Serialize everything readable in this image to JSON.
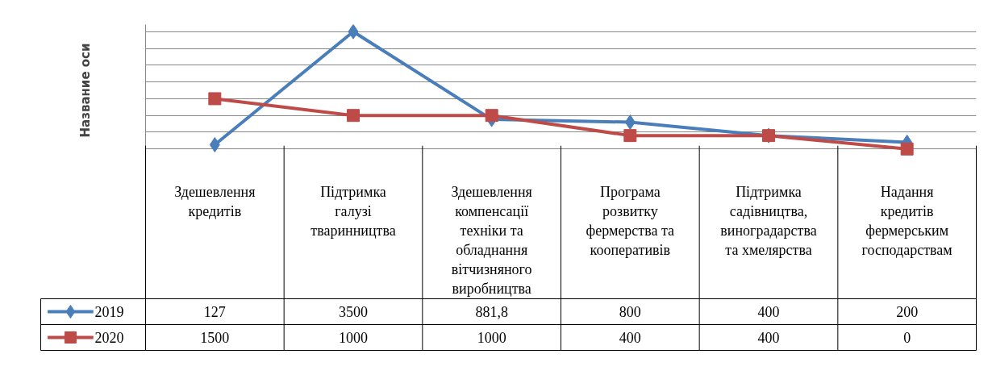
{
  "chart_data": {
    "type": "line",
    "ylabel": "Название оси",
    "categories": [
      "Здешевлення кредитів",
      "Підтримка галузі тваринництва",
      "Здешевлення компенсації техніки та обладнання вітчизняного виробництва",
      "Програма розвитку фермерства та кооперативів",
      "Підтримка садівництва, виноградарства та хмелярства",
      "Надання кредитів фермерським господарствам"
    ],
    "series": [
      {
        "name": "2019",
        "color": "#4a7ebb",
        "marker": "diamond",
        "values": [
          127,
          3500,
          881.8,
          800,
          400,
          200
        ],
        "value_labels": [
          "127",
          "3500",
          "881,8",
          "800",
          "400",
          "200"
        ]
      },
      {
        "name": "2020",
        "color": "#be4b48",
        "marker": "square",
        "values": [
          1500,
          1000,
          1000,
          400,
          400,
          0
        ],
        "value_labels": [
          "1500",
          "1000",
          "1000",
          "400",
          "400",
          "0"
        ]
      }
    ],
    "tick_labels": "x",
    "grid": "y",
    "legend": "bottom",
    "line_style": "solid"
  }
}
